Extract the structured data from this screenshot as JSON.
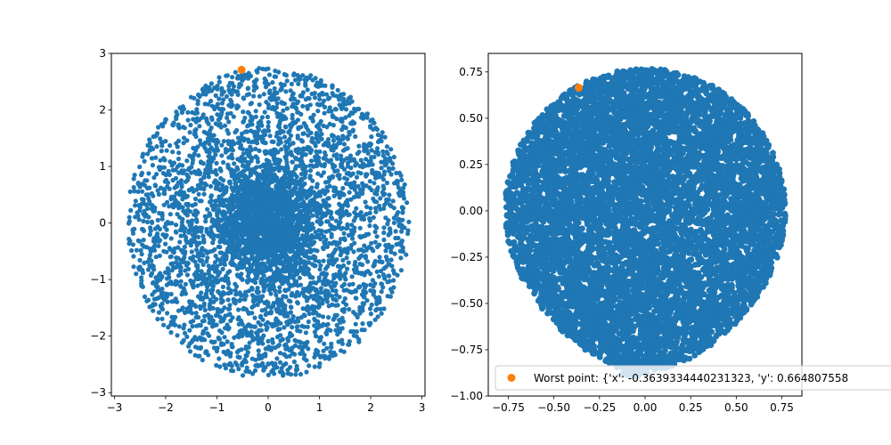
{
  "figure": {
    "background": "#ffffff"
  },
  "chart_data": [
    {
      "type": "scatter",
      "title": "",
      "xlabel": "",
      "ylabel": "",
      "xlim": [
        -3.06,
        3.06
      ],
      "ylim": [
        -3.06,
        3.0
      ],
      "xticks": [
        -3,
        -2,
        -1,
        0,
        1,
        2,
        3
      ],
      "xtick_labels": [
        "−3",
        "−2",
        "−1",
        "0",
        "1",
        "2",
        "3"
      ],
      "yticks": [
        -3,
        -2,
        -1,
        0,
        1,
        2,
        3
      ],
      "ytick_labels": [
        "−3",
        "−2",
        "−1",
        "0",
        "1",
        "2",
        "3"
      ],
      "grid": false,
      "series": [
        {
          "color": "#1f77b4",
          "distribution": "dense gaussian core inside a sparser ring of radius about 2.75",
          "approx_count": 5000
        },
        {
          "color": "#ff7f0e",
          "points": [
            {
              "x": -0.52,
              "y": 2.71
            }
          ]
        }
      ]
    },
    {
      "type": "scatter",
      "title": "",
      "xlabel": "",
      "ylabel": "",
      "xlim": [
        -0.86,
        0.86
      ],
      "ylim": [
        -1.0,
        0.85
      ],
      "xticks": [
        -0.75,
        -0.5,
        -0.25,
        0.0,
        0.25,
        0.5,
        0.75
      ],
      "xtick_labels": [
        "−0.75",
        "−0.50",
        "−0.25",
        "0.00",
        "0.25",
        "0.50",
        "0.75"
      ],
      "yticks": [
        -1.0,
        -0.75,
        -0.5,
        -0.25,
        0.0,
        0.25,
        0.5,
        0.75
      ],
      "ytick_labels": [
        "−1.00",
        "−0.75",
        "−0.50",
        "−0.25",
        "0.00",
        "0.25",
        "0.50",
        "0.75"
      ],
      "grid": false,
      "legend": {
        "placement": "lower-right",
        "entries": [
          {
            "label": "Worst point: {'x': -0.3639334440231323, 'y': 0.664807558",
            "color": "#ff7f0e"
          }
        ]
      },
      "series": [
        {
          "color": "#1f77b4",
          "distribution": "densely filled disc of radius about 0.77 with a short tail near the bottom",
          "approx_count": 8000
        },
        {
          "color": "#ff7f0e",
          "points": [
            {
              "x": -0.3639334440231323,
              "y": 0.664807558
            }
          ]
        }
      ]
    }
  ]
}
